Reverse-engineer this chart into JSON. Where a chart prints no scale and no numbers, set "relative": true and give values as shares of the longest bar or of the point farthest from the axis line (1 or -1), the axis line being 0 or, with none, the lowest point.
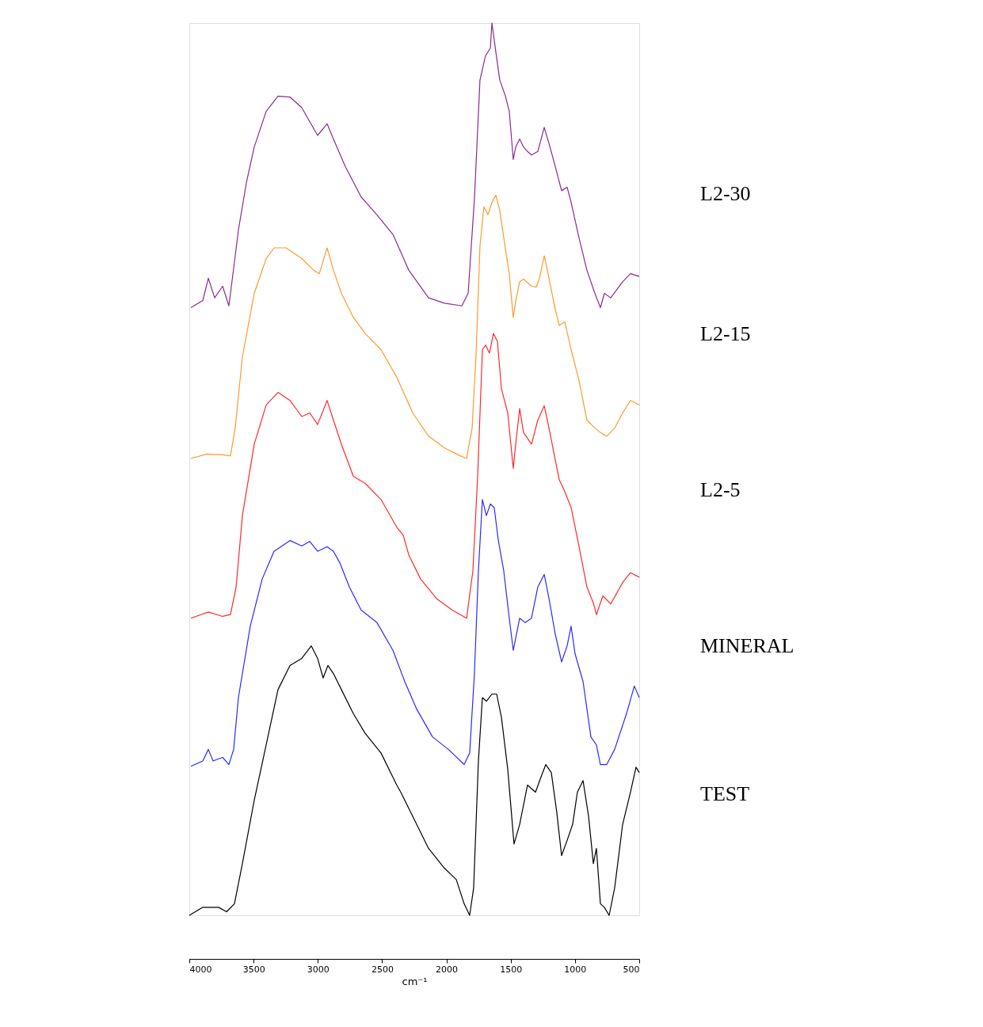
{
  "chart_data": {
    "type": "line",
    "relative": true,
    "xlabel": "cm⁻¹",
    "xlim": [
      4000,
      500
    ],
    "xticks": [
      4000,
      3500,
      3000,
      2500,
      2000,
      1500,
      1000,
      500
    ],
    "grid": false,
    "legend": false,
    "marker": "none",
    "line_style": "solid",
    "series": [
      {
        "name": "L2-30",
        "color": "#8b2a8f",
        "x": [
          3988,
          3895,
          3852,
          3803,
          3741,
          3692,
          3649,
          3618,
          3556,
          3495,
          3402,
          3310,
          3217,
          3125,
          3002,
          2928,
          2879,
          2786,
          2663,
          2540,
          2416,
          2293,
          2139,
          2016,
          1880,
          1831,
          1782,
          1739,
          1696,
          1658,
          1646,
          1615,
          1585,
          1541,
          1511,
          1480,
          1461,
          1430,
          1400,
          1369,
          1338,
          1289,
          1239,
          1202,
          1153,
          1104,
          1061,
          1030,
          968,
          907,
          845,
          802,
          771,
          722,
          629,
          568,
          500
        ],
        "values": [
          0.681,
          0.689,
          0.714,
          0.692,
          0.705,
          0.683,
          0.732,
          0.768,
          0.821,
          0.861,
          0.901,
          0.918,
          0.917,
          0.905,
          0.874,
          0.887,
          0.87,
          0.839,
          0.805,
          0.785,
          0.763,
          0.723,
          0.692,
          0.686,
          0.683,
          0.697,
          0.803,
          0.936,
          0.963,
          0.972,
          1.0,
          0.967,
          0.936,
          0.918,
          0.901,
          0.847,
          0.861,
          0.87,
          0.861,
          0.856,
          0.852,
          0.856,
          0.883,
          0.865,
          0.839,
          0.812,
          0.816,
          0.799,
          0.759,
          0.723,
          0.697,
          0.681,
          0.697,
          0.692,
          0.71,
          0.719,
          0.716
        ]
      },
      {
        "name": "L2-15",
        "color": "#ff9a2e",
        "x": [
          3988,
          3864,
          3741,
          3680,
          3643,
          3587,
          3495,
          3402,
          3341,
          3248,
          3125,
          3033,
          2989,
          2928,
          2879,
          2817,
          2724,
          2632,
          2509,
          2386,
          2262,
          2139,
          2016,
          1893,
          1843,
          1800,
          1770,
          1739,
          1708,
          1677,
          1646,
          1615,
          1585,
          1535,
          1511,
          1480,
          1461,
          1430,
          1400,
          1338,
          1301,
          1276,
          1239,
          1202,
          1153,
          1122,
          1079,
          1030,
          968,
          907,
          845,
          802,
          753,
          691,
          629,
          568,
          500
        ],
        "values": [
          0.512,
          0.517,
          0.516,
          0.515,
          0.546,
          0.626,
          0.697,
          0.736,
          0.748,
          0.748,
          0.736,
          0.723,
          0.719,
          0.748,
          0.723,
          0.697,
          0.67,
          0.652,
          0.634,
          0.603,
          0.563,
          0.537,
          0.524,
          0.515,
          0.512,
          0.546,
          0.626,
          0.75,
          0.794,
          0.785,
          0.799,
          0.807,
          0.79,
          0.741,
          0.719,
          0.67,
          0.688,
          0.71,
          0.713,
          0.705,
          0.704,
          0.714,
          0.739,
          0.714,
          0.679,
          0.661,
          0.665,
          0.634,
          0.599,
          0.555,
          0.546,
          0.541,
          0.537,
          0.546,
          0.563,
          0.577,
          0.572
        ]
      },
      {
        "name": "L2-5",
        "color": "#ff2a2a",
        "x": [
          3988,
          3852,
          3741,
          3680,
          3636,
          3587,
          3495,
          3402,
          3310,
          3217,
          3125,
          3063,
          3002,
          2928,
          2879,
          2817,
          2724,
          2632,
          2509,
          2386,
          2336,
          2293,
          2201,
          2077,
          1954,
          1843,
          1794,
          1757,
          1720,
          1695,
          1665,
          1634,
          1603,
          1572,
          1523,
          1480,
          1461,
          1430,
          1400,
          1338,
          1289,
          1239,
          1202,
          1153,
          1122,
          1079,
          1030,
          968,
          907,
          857,
          833,
          783,
          722,
          629,
          568,
          500
        ],
        "values": [
          0.333,
          0.34,
          0.335,
          0.337,
          0.368,
          0.448,
          0.528,
          0.572,
          0.586,
          0.577,
          0.559,
          0.563,
          0.55,
          0.577,
          0.555,
          0.528,
          0.492,
          0.484,
          0.466,
          0.435,
          0.426,
          0.404,
          0.377,
          0.355,
          0.342,
          0.333,
          0.386,
          0.492,
          0.634,
          0.639,
          0.63,
          0.652,
          0.643,
          0.59,
          0.563,
          0.501,
          0.528,
          0.568,
          0.541,
          0.528,
          0.555,
          0.571,
          0.546,
          0.51,
          0.488,
          0.475,
          0.457,
          0.413,
          0.368,
          0.35,
          0.337,
          0.358,
          0.349,
          0.373,
          0.384,
          0.379
        ]
      },
      {
        "name": "MINERAL",
        "color": "#2a2aff",
        "x": [
          3988,
          3895,
          3852,
          3815,
          3741,
          3692,
          3655,
          3618,
          3526,
          3433,
          3341,
          3217,
          3125,
          3063,
          3002,
          2928,
          2879,
          2829,
          2755,
          2663,
          2540,
          2416,
          2324,
          2231,
          2108,
          1985,
          1862,
          1819,
          1782,
          1751,
          1720,
          1689,
          1658,
          1628,
          1597,
          1554,
          1511,
          1480,
          1430,
          1387,
          1338,
          1289,
          1239,
          1202,
          1153,
          1104,
          1061,
          1030,
          999,
          937,
          876,
          833,
          802,
          753,
          691,
          599,
          538,
          500
        ],
        "values": [
          0.167,
          0.173,
          0.186,
          0.173,
          0.177,
          0.169,
          0.186,
          0.244,
          0.324,
          0.377,
          0.408,
          0.42,
          0.414,
          0.419,
          0.408,
          0.413,
          0.408,
          0.395,
          0.368,
          0.342,
          0.328,
          0.297,
          0.262,
          0.231,
          0.2,
          0.186,
          0.169,
          0.182,
          0.271,
          0.386,
          0.466,
          0.448,
          0.461,
          0.457,
          0.421,
          0.386,
          0.333,
          0.297,
          0.333,
          0.328,
          0.333,
          0.368,
          0.382,
          0.355,
          0.315,
          0.284,
          0.302,
          0.324,
          0.293,
          0.262,
          0.2,
          0.191,
          0.169,
          0.169,
          0.186,
          0.226,
          0.257,
          0.244
        ]
      },
      {
        "name": "TEST",
        "color": "#000000",
        "x": [
          4000,
          3895,
          3772,
          3710,
          3649,
          3587,
          3495,
          3402,
          3310,
          3217,
          3125,
          3051,
          3002,
          2959,
          2922,
          2879,
          2817,
          2724,
          2632,
          2509,
          2386,
          2355,
          2262,
          2139,
          2016,
          1923,
          1862,
          1819,
          1788,
          1751,
          1720,
          1689,
          1646,
          1609,
          1572,
          1523,
          1474,
          1430,
          1369,
          1307,
          1264,
          1227,
          1184,
          1141,
          1104,
          1061,
          1018,
          981,
          937,
          894,
          857,
          833,
          802,
          771,
          734,
          691,
          629,
          568,
          525,
          500
        ],
        "values": [
          0,
          0.009,
          0.009,
          0.004,
          0.013,
          0.058,
          0.129,
          0.191,
          0.253,
          0.28,
          0.288,
          0.302,
          0.288,
          0.266,
          0.28,
          0.271,
          0.253,
          0.226,
          0.204,
          0.182,
          0.146,
          0.138,
          0.111,
          0.075,
          0.053,
          0.04,
          0.013,
          0,
          0.031,
          0.173,
          0.244,
          0.24,
          0.248,
          0.248,
          0.222,
          0.164,
          0.08,
          0.102,
          0.146,
          0.138,
          0.155,
          0.169,
          0.16,
          0.115,
          0.067,
          0.084,
          0.102,
          0.138,
          0.151,
          0.111,
          0.058,
          0.075,
          0.013,
          0.009,
          0,
          0.031,
          0.102,
          0.138,
          0.166,
          0.16
        ]
      }
    ]
  }
}
